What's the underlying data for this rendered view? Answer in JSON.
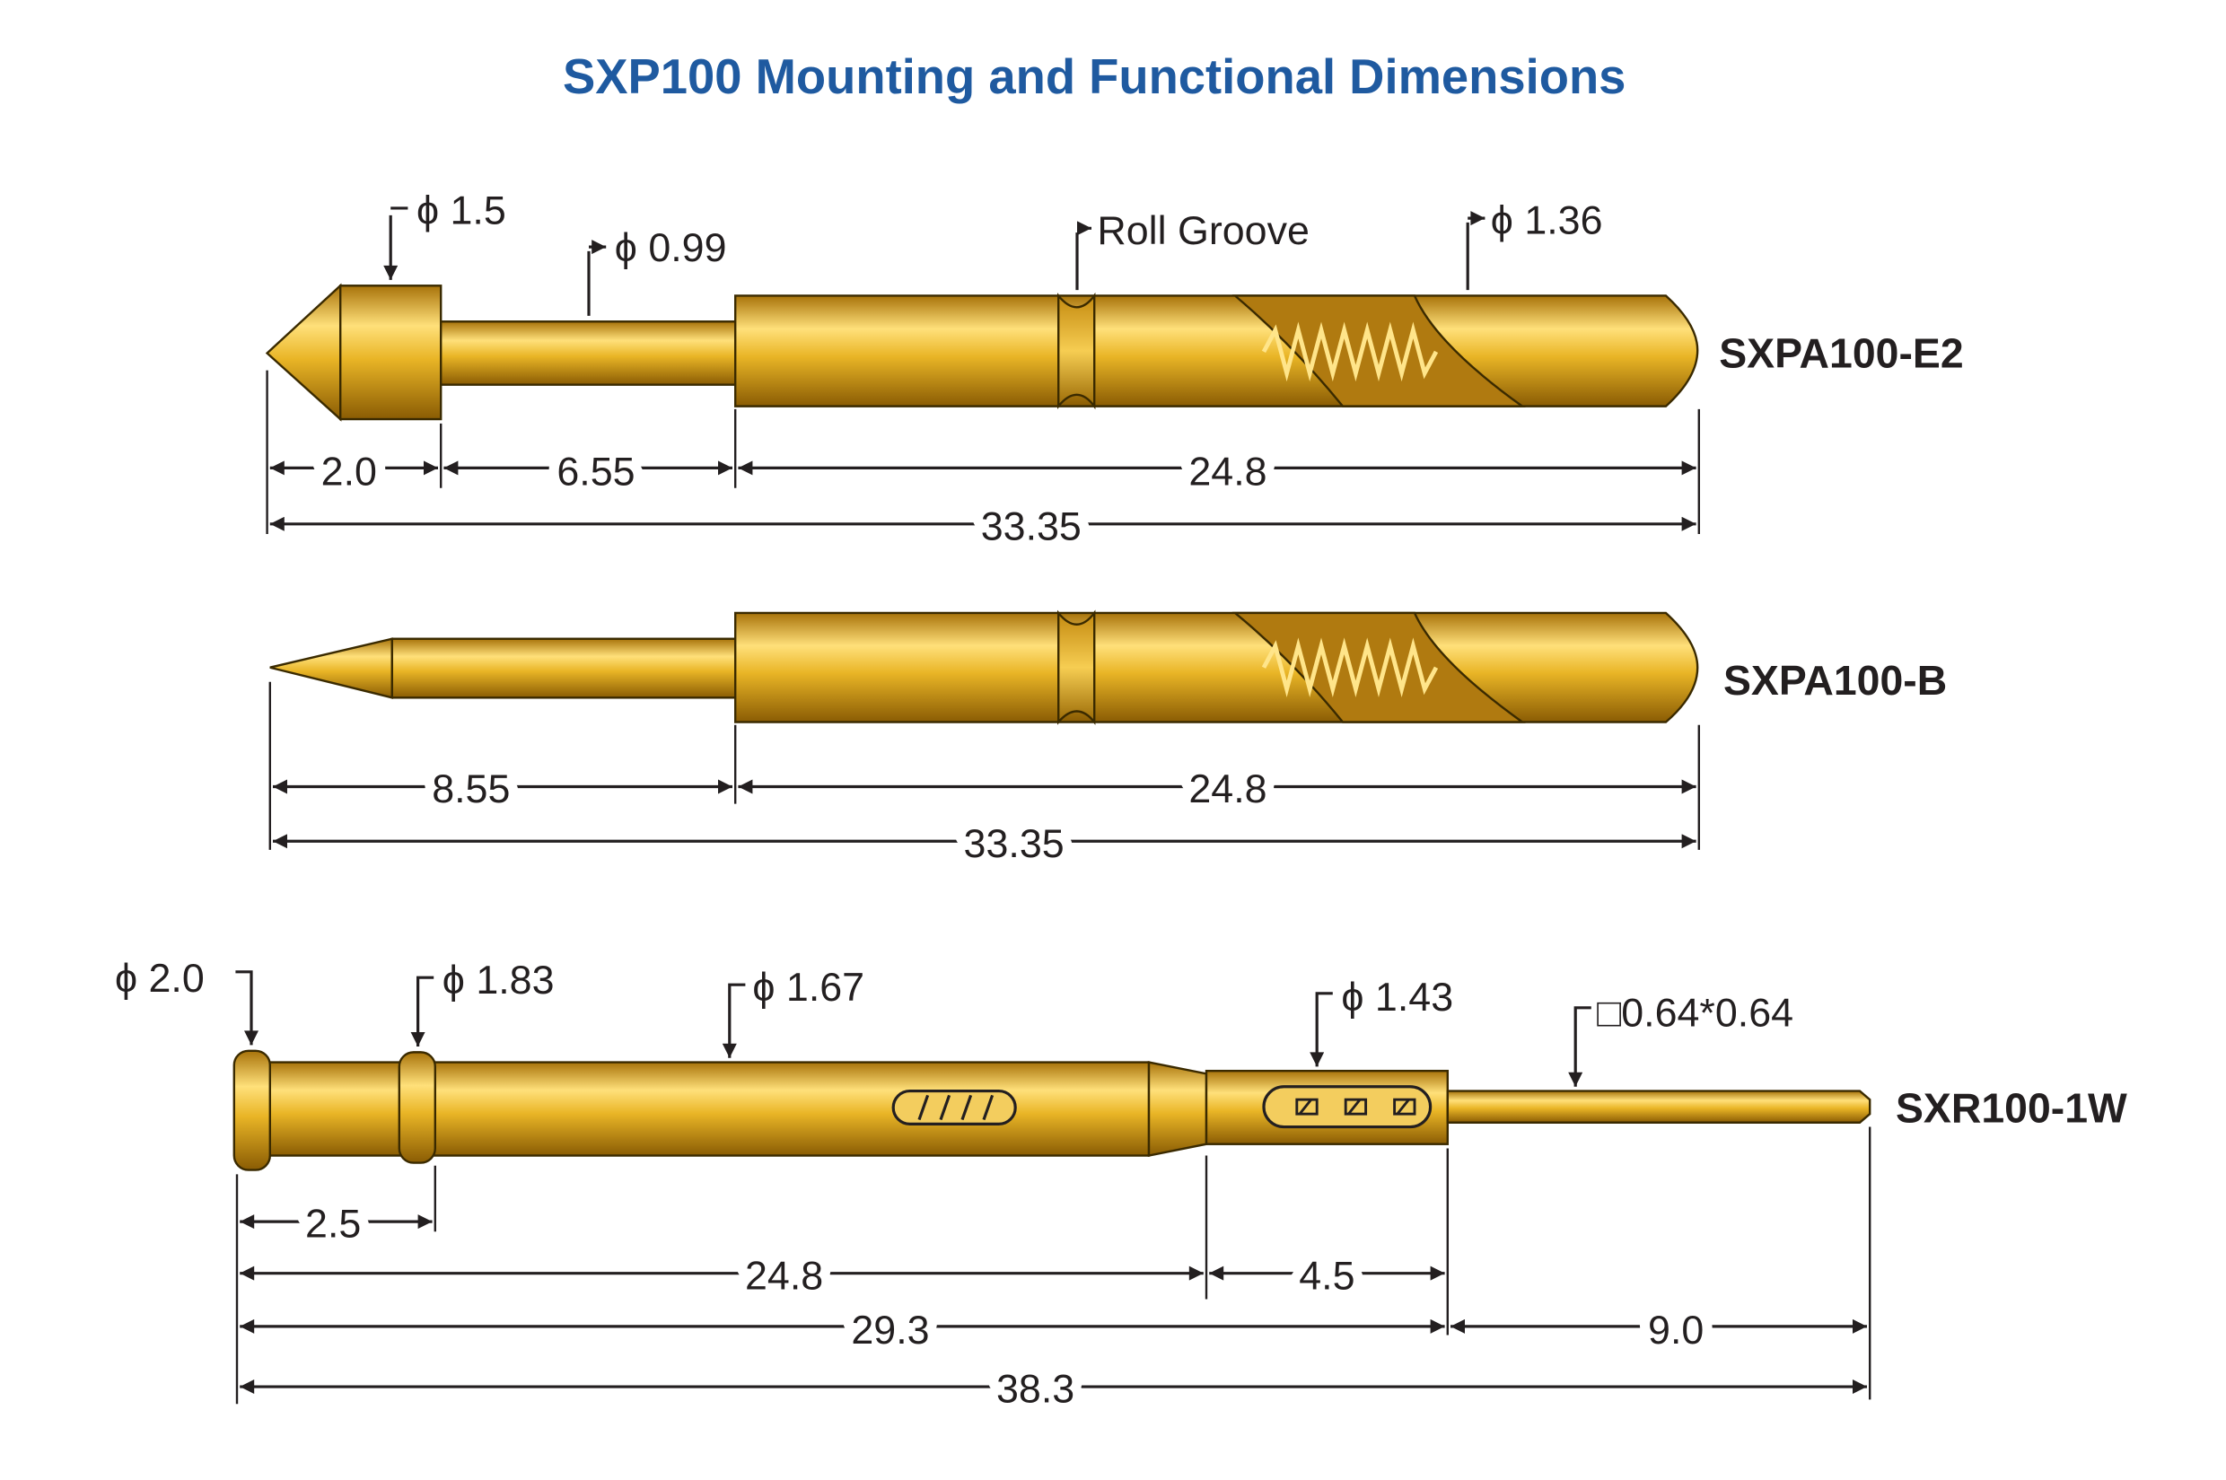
{
  "title": "SXP100 Mounting and Functional Dimensions",
  "colors": {
    "title": "#1f5aa0",
    "gold": "#e8b422",
    "line": "#231f20"
  },
  "probes": [
    {
      "part": "SXPA100-E2",
      "callouts": [
        "ϕ 1.5",
        "ϕ 0.99",
        "Roll Groove",
        "ϕ 1.36"
      ],
      "dims": [
        "2.0",
        "6.55",
        "24.8",
        "33.35"
      ]
    },
    {
      "part": "SXPA100-B",
      "dims": [
        "8.55",
        "24.8",
        "33.35"
      ]
    },
    {
      "part": "SXR100-1W",
      "callouts": [
        "ϕ 2.0",
        "ϕ 1.83",
        "ϕ 1.67",
        "ϕ 1.43",
        "□0.64*0.64"
      ],
      "dims": [
        "2.5",
        "24.8",
        "4.5",
        "29.3",
        "9.0",
        "38.3"
      ]
    }
  ]
}
